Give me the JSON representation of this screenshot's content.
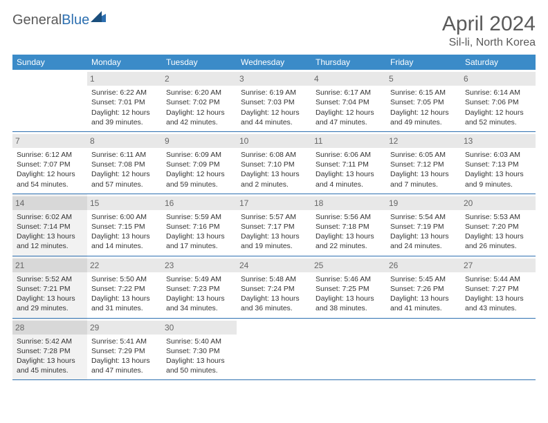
{
  "logo": {
    "text_plain": "General",
    "text_accent": "Blue"
  },
  "header": {
    "month_title": "April 2024",
    "location": "Sil-li, North Korea"
  },
  "colors": {
    "header_bg": "#3b8bc8",
    "rule": "#2c6fb0",
    "daynum_bg": "#e8e8e8",
    "shade_bg": "#f2f2f2",
    "text": "#333333",
    "title": "#5a5a5a"
  },
  "weekdays": [
    "Sunday",
    "Monday",
    "Tuesday",
    "Wednesday",
    "Thursday",
    "Friday",
    "Saturday"
  ],
  "weeks": [
    [
      {
        "n": "",
        "empty": true
      },
      {
        "n": "1",
        "sr": "Sunrise: 6:22 AM",
        "ss": "Sunset: 7:01 PM",
        "d1": "Daylight: 12 hours",
        "d2": "and 39 minutes."
      },
      {
        "n": "2",
        "sr": "Sunrise: 6:20 AM",
        "ss": "Sunset: 7:02 PM",
        "d1": "Daylight: 12 hours",
        "d2": "and 42 minutes."
      },
      {
        "n": "3",
        "sr": "Sunrise: 6:19 AM",
        "ss": "Sunset: 7:03 PM",
        "d1": "Daylight: 12 hours",
        "d2": "and 44 minutes."
      },
      {
        "n": "4",
        "sr": "Sunrise: 6:17 AM",
        "ss": "Sunset: 7:04 PM",
        "d1": "Daylight: 12 hours",
        "d2": "and 47 minutes."
      },
      {
        "n": "5",
        "sr": "Sunrise: 6:15 AM",
        "ss": "Sunset: 7:05 PM",
        "d1": "Daylight: 12 hours",
        "d2": "and 49 minutes."
      },
      {
        "n": "6",
        "sr": "Sunrise: 6:14 AM",
        "ss": "Sunset: 7:06 PM",
        "d1": "Daylight: 12 hours",
        "d2": "and 52 minutes."
      }
    ],
    [
      {
        "n": "7",
        "sr": "Sunrise: 6:12 AM",
        "ss": "Sunset: 7:07 PM",
        "d1": "Daylight: 12 hours",
        "d2": "and 54 minutes."
      },
      {
        "n": "8",
        "sr": "Sunrise: 6:11 AM",
        "ss": "Sunset: 7:08 PM",
        "d1": "Daylight: 12 hours",
        "d2": "and 57 minutes."
      },
      {
        "n": "9",
        "sr": "Sunrise: 6:09 AM",
        "ss": "Sunset: 7:09 PM",
        "d1": "Daylight: 12 hours",
        "d2": "and 59 minutes."
      },
      {
        "n": "10",
        "sr": "Sunrise: 6:08 AM",
        "ss": "Sunset: 7:10 PM",
        "d1": "Daylight: 13 hours",
        "d2": "and 2 minutes."
      },
      {
        "n": "11",
        "sr": "Sunrise: 6:06 AM",
        "ss": "Sunset: 7:11 PM",
        "d1": "Daylight: 13 hours",
        "d2": "and 4 minutes."
      },
      {
        "n": "12",
        "sr": "Sunrise: 6:05 AM",
        "ss": "Sunset: 7:12 PM",
        "d1": "Daylight: 13 hours",
        "d2": "and 7 minutes."
      },
      {
        "n": "13",
        "sr": "Sunrise: 6:03 AM",
        "ss": "Sunset: 7:13 PM",
        "d1": "Daylight: 13 hours",
        "d2": "and 9 minutes."
      }
    ],
    [
      {
        "n": "14",
        "shade": true,
        "sr": "Sunrise: 6:02 AM",
        "ss": "Sunset: 7:14 PM",
        "d1": "Daylight: 13 hours",
        "d2": "and 12 minutes."
      },
      {
        "n": "15",
        "sr": "Sunrise: 6:00 AM",
        "ss": "Sunset: 7:15 PM",
        "d1": "Daylight: 13 hours",
        "d2": "and 14 minutes."
      },
      {
        "n": "16",
        "sr": "Sunrise: 5:59 AM",
        "ss": "Sunset: 7:16 PM",
        "d1": "Daylight: 13 hours",
        "d2": "and 17 minutes."
      },
      {
        "n": "17",
        "sr": "Sunrise: 5:57 AM",
        "ss": "Sunset: 7:17 PM",
        "d1": "Daylight: 13 hours",
        "d2": "and 19 minutes."
      },
      {
        "n": "18",
        "sr": "Sunrise: 5:56 AM",
        "ss": "Sunset: 7:18 PM",
        "d1": "Daylight: 13 hours",
        "d2": "and 22 minutes."
      },
      {
        "n": "19",
        "sr": "Sunrise: 5:54 AM",
        "ss": "Sunset: 7:19 PM",
        "d1": "Daylight: 13 hours",
        "d2": "and 24 minutes."
      },
      {
        "n": "20",
        "sr": "Sunrise: 5:53 AM",
        "ss": "Sunset: 7:20 PM",
        "d1": "Daylight: 13 hours",
        "d2": "and 26 minutes."
      }
    ],
    [
      {
        "n": "21",
        "shade": true,
        "sr": "Sunrise: 5:52 AM",
        "ss": "Sunset: 7:21 PM",
        "d1": "Daylight: 13 hours",
        "d2": "and 29 minutes."
      },
      {
        "n": "22",
        "sr": "Sunrise: 5:50 AM",
        "ss": "Sunset: 7:22 PM",
        "d1": "Daylight: 13 hours",
        "d2": "and 31 minutes."
      },
      {
        "n": "23",
        "sr": "Sunrise: 5:49 AM",
        "ss": "Sunset: 7:23 PM",
        "d1": "Daylight: 13 hours",
        "d2": "and 34 minutes."
      },
      {
        "n": "24",
        "sr": "Sunrise: 5:48 AM",
        "ss": "Sunset: 7:24 PM",
        "d1": "Daylight: 13 hours",
        "d2": "and 36 minutes."
      },
      {
        "n": "25",
        "sr": "Sunrise: 5:46 AM",
        "ss": "Sunset: 7:25 PM",
        "d1": "Daylight: 13 hours",
        "d2": "and 38 minutes."
      },
      {
        "n": "26",
        "sr": "Sunrise: 5:45 AM",
        "ss": "Sunset: 7:26 PM",
        "d1": "Daylight: 13 hours",
        "d2": "and 41 minutes."
      },
      {
        "n": "27",
        "sr": "Sunrise: 5:44 AM",
        "ss": "Sunset: 7:27 PM",
        "d1": "Daylight: 13 hours",
        "d2": "and 43 minutes."
      }
    ],
    [
      {
        "n": "28",
        "shade": true,
        "sr": "Sunrise: 5:42 AM",
        "ss": "Sunset: 7:28 PM",
        "d1": "Daylight: 13 hours",
        "d2": "and 45 minutes."
      },
      {
        "n": "29",
        "sr": "Sunrise: 5:41 AM",
        "ss": "Sunset: 7:29 PM",
        "d1": "Daylight: 13 hours",
        "d2": "and 47 minutes."
      },
      {
        "n": "30",
        "sr": "Sunrise: 5:40 AM",
        "ss": "Sunset: 7:30 PM",
        "d1": "Daylight: 13 hours",
        "d2": "and 50 minutes."
      },
      {
        "n": "",
        "empty": true
      },
      {
        "n": "",
        "empty": true
      },
      {
        "n": "",
        "empty": true
      },
      {
        "n": "",
        "empty": true
      }
    ]
  ]
}
